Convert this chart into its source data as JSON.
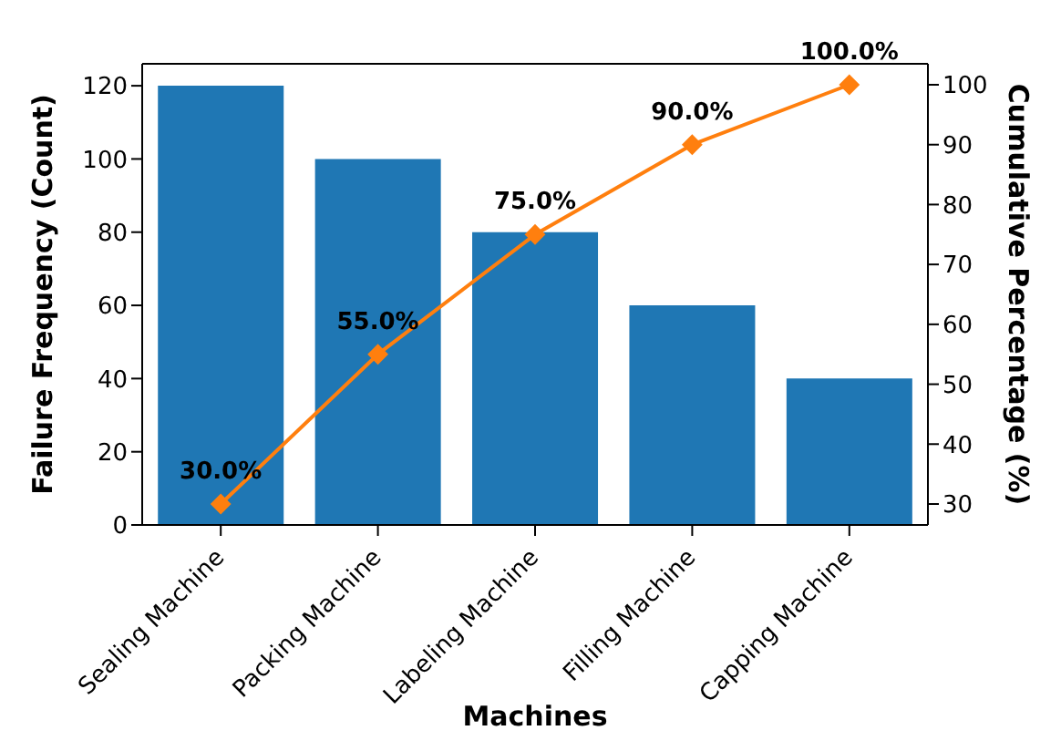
{
  "chart_data": {
    "type": "bar",
    "xlabel": "Machines",
    "ylabel": "Failure Frequency (Count)",
    "y2label": "Cumulative Percentage (%)",
    "categories": [
      "Sealing Machine",
      "Packing Machine",
      "Labeling Machine",
      "Filling Machine",
      "Capping Machine"
    ],
    "series": [
      {
        "color": "#1f77b4",
        "values": [
          120,
          100,
          80,
          60,
          40
        ]
      },
      {
        "type": "line",
        "axis": "y2",
        "color": "#ff7f0e",
        "values": [
          30,
          55,
          75,
          90,
          100
        ],
        "value_labels": [
          "30.0%",
          "55.0%",
          "75.0%",
          "90.0%",
          "100.0%"
        ],
        "marker": "diamond"
      }
    ],
    "ylim": [
      0,
      126
    ],
    "yticks": [
      0,
      20,
      40,
      60,
      80,
      100,
      120
    ],
    "y2lim": [
      26.5,
      103.5
    ],
    "y2ticks": [
      30,
      40,
      50,
      60,
      70,
      80,
      90,
      100
    ],
    "grid": false,
    "legend": false
  }
}
